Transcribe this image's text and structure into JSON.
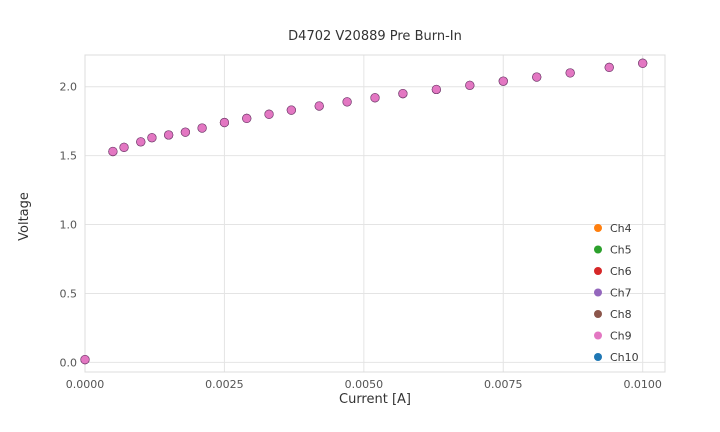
{
  "chart_data": {
    "type": "scatter",
    "title": "D4702 V20889 Pre Burn-In",
    "xlabel": "Current [A]",
    "ylabel": "Voltage",
    "xlim": [
      0,
      0.0104
    ],
    "ylim": [
      -0.07,
      2.23
    ],
    "x_tick_labels": [
      "0.0000",
      "0.0025",
      "0.0050",
      "0.0075",
      "0.0100"
    ],
    "x_tick_values": [
      0,
      0.0025,
      0.005,
      0.0075,
      0.01
    ],
    "y_tick_labels": [
      "0.0",
      "0.5",
      "1.0",
      "1.5",
      "2.0"
    ],
    "y_tick_values": [
      0,
      0.5,
      1.0,
      1.5,
      2.0
    ],
    "grid": true,
    "legend_position": "lower right",
    "x": [
      0.0,
      0.0005,
      0.0007,
      0.001,
      0.0012,
      0.0015,
      0.0018,
      0.0021,
      0.0025,
      0.0029,
      0.0033,
      0.0037,
      0.0042,
      0.0047,
      0.0052,
      0.0057,
      0.0063,
      0.0069,
      0.0075,
      0.0081,
      0.0087,
      0.0094,
      0.01
    ],
    "y": [
      0.02,
      1.53,
      1.56,
      1.6,
      1.63,
      1.65,
      1.67,
      1.7,
      1.74,
      1.77,
      1.8,
      1.83,
      1.86,
      1.89,
      1.92,
      1.95,
      1.98,
      2.01,
      2.04,
      2.07,
      2.1,
      2.14,
      2.17
    ],
    "overlap_note": "All channel series plot visually identical overlapping points; pink Ch9 markers appear on top.",
    "series": [
      {
        "name": "Ch4",
        "color": "#ff7f0e"
      },
      {
        "name": "Ch5",
        "color": "#2ca02c"
      },
      {
        "name": "Ch6",
        "color": "#d62728"
      },
      {
        "name": "Ch7",
        "color": "#9467bd"
      },
      {
        "name": "Ch8",
        "color": "#8c564b"
      },
      {
        "name": "Ch9",
        "color": "#e377c2"
      },
      {
        "name": "Ch10",
        "color": "#1f77b4"
      }
    ],
    "draw_order": [
      "Ch4",
      "Ch5",
      "Ch6",
      "Ch7",
      "Ch8",
      "Ch10",
      "Ch9"
    ],
    "colors": {
      "grid": "#e4e4e4",
      "border": "#dcdcdc",
      "tick_text": "#555555",
      "legend_text": "#3a3a3a"
    }
  }
}
